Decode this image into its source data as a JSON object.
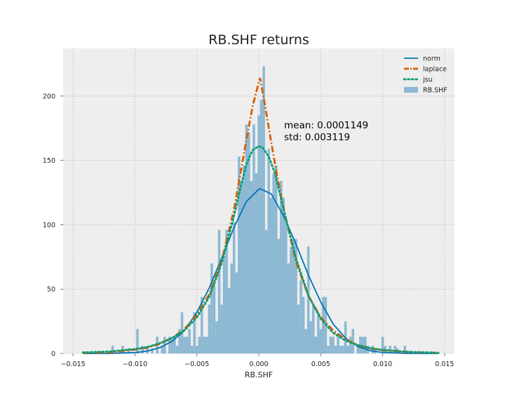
{
  "chart_data": {
    "type": "bar",
    "title": "RB.SHF returns",
    "xlabel": "RB.SHF",
    "ylabel": "",
    "xlim": [
      -0.0158,
      0.0158
    ],
    "ylim": [
      0,
      237
    ],
    "xticks": [
      -0.015,
      -0.01,
      -0.005,
      0.0,
      0.005,
      0.01,
      0.015
    ],
    "xtick_labels": [
      "−0.015",
      "−0.010",
      "−0.005",
      "0.000",
      "0.005",
      "0.010",
      "0.015"
    ],
    "yticks": [
      0,
      50,
      100,
      150,
      200
    ],
    "ytick_labels": [
      "0",
      "50",
      "100",
      "150",
      "200"
    ],
    "grid": true,
    "legend_position": "top-right",
    "annotation_lines": [
      "mean: 0.0001149",
      "std: 0.003119"
    ],
    "histogram": {
      "name": "RB.SHF",
      "color": "#8cb8d3",
      "bins": [
        [
          -0.0118,
          6
        ],
        [
          -0.011,
          6
        ],
        [
          -0.0105,
          4
        ],
        [
          -0.0098,
          19
        ],
        [
          -0.0094,
          6
        ],
        [
          -0.009,
          6
        ],
        [
          -0.0086,
          4
        ],
        [
          -0.0082,
          13
        ],
        [
          -0.0078,
          6
        ],
        [
          -0.0076,
          13
        ],
        [
          -0.0072,
          13
        ],
        [
          -0.007,
          13
        ],
        [
          -0.0068,
          13
        ],
        [
          -0.0066,
          6
        ],
        [
          -0.0064,
          19
        ],
        [
          -0.0062,
          32
        ],
        [
          -0.006,
          13
        ],
        [
          -0.0058,
          13
        ],
        [
          -0.0056,
          19
        ],
        [
          -0.0054,
          6
        ],
        [
          -0.0052,
          32
        ],
        [
          -0.005,
          6
        ],
        [
          -0.0048,
          13
        ],
        [
          -0.0046,
          44
        ],
        [
          -0.0044,
          13
        ],
        [
          -0.0042,
          13
        ],
        [
          -0.004,
          38
        ],
        [
          -0.0038,
          70
        ],
        [
          -0.0036,
          57
        ],
        [
          -0.0034,
          25
        ],
        [
          -0.0032,
          96
        ],
        [
          -0.003,
          38
        ],
        [
          -0.0028,
          76
        ],
        [
          -0.0026,
          96
        ],
        [
          -0.0024,
          51
        ],
        [
          -0.0022,
          70
        ],
        [
          -0.002,
          102
        ],
        [
          -0.0018,
          63
        ],
        [
          -0.0016,
          153
        ],
        [
          -0.0014,
          134
        ],
        [
          -0.0012,
          146
        ],
        [
          -0.001,
          178
        ],
        [
          -0.0008,
          172
        ],
        [
          -0.0006,
          134
        ],
        [
          -0.0004,
          178
        ],
        [
          -0.0002,
          140
        ],
        [
          0.0,
          185
        ],
        [
          0.0002,
          197
        ],
        [
          0.0004,
          223
        ],
        [
          0.0006,
          96
        ],
        [
          0.0008,
          159
        ],
        [
          0.001,
          121
        ],
        [
          0.0012,
          140
        ],
        [
          0.0014,
          146
        ],
        [
          0.0016,
          89
        ],
        [
          0.0018,
          134
        ],
        [
          0.002,
          121
        ],
        [
          0.0022,
          102
        ],
        [
          0.0024,
          70
        ],
        [
          0.0026,
          83
        ],
        [
          0.0028,
          89
        ],
        [
          0.003,
          89
        ],
        [
          0.0032,
          38
        ],
        [
          0.0034,
          57
        ],
        [
          0.0036,
          44
        ],
        [
          0.0038,
          19
        ],
        [
          0.004,
          83
        ],
        [
          0.0042,
          25
        ],
        [
          0.0044,
          38
        ],
        [
          0.0046,
          13
        ],
        [
          0.0048,
          32
        ],
        [
          0.005,
          19
        ],
        [
          0.0052,
          44
        ],
        [
          0.0054,
          44
        ],
        [
          0.0056,
          6
        ],
        [
          0.0058,
          13
        ],
        [
          0.006,
          13
        ],
        [
          0.0062,
          6
        ],
        [
          0.0064,
          13
        ],
        [
          0.0066,
          6
        ],
        [
          0.0068,
          6
        ],
        [
          0.007,
          25
        ],
        [
          0.0072,
          6
        ],
        [
          0.0074,
          13
        ],
        [
          0.0076,
          19
        ],
        [
          0.008,
          6
        ],
        [
          0.0082,
          13
        ],
        [
          0.0084,
          13
        ],
        [
          0.0086,
          13
        ],
        [
          0.0088,
          6
        ],
        [
          0.0092,
          6
        ],
        [
          0.0094,
          4
        ],
        [
          0.01,
          13
        ],
        [
          0.0102,
          6
        ],
        [
          0.0106,
          6
        ],
        [
          0.011,
          6
        ],
        [
          0.0112,
          4
        ],
        [
          0.0118,
          6
        ]
      ]
    },
    "series": [
      {
        "name": "norm",
        "color": "#0072b2",
        "style": "solid",
        "x": [
          -0.0142,
          -0.012,
          -0.01,
          -0.009,
          -0.008,
          -0.007,
          -0.006,
          -0.005,
          -0.004,
          -0.003,
          -0.002,
          -0.001,
          0.0,
          0.0001,
          0.001,
          0.002,
          0.003,
          0.004,
          0.005,
          0.006,
          0.007,
          0.008,
          0.009,
          0.01,
          0.012,
          0.0145
        ],
        "y": [
          0,
          0.1,
          0.7,
          1.9,
          4.5,
          9.5,
          18,
          32,
          51,
          74,
          98,
          118,
          127.6,
          128,
          124,
          107,
          85,
          61,
          40,
          23,
          12,
          5.4,
          2.2,
          0.8,
          0.06,
          0
        ]
      },
      {
        "name": "laplace",
        "color": "#d55e00",
        "style": "dashdot",
        "x": [
          -0.0142,
          -0.012,
          -0.01,
          -0.009,
          -0.008,
          -0.007,
          -0.006,
          -0.005,
          -0.004,
          -0.003,
          -0.002,
          -0.0015,
          -0.001,
          -0.0005,
          0.0,
          0.0001,
          0.0005,
          0.001,
          0.0015,
          0.002,
          0.003,
          0.004,
          0.005,
          0.006,
          0.007,
          0.008,
          0.009,
          0.01,
          0.012,
          0.0145
        ],
        "y": [
          0.5,
          1,
          3,
          4.5,
          7.5,
          12,
          19,
          30,
          46,
          72,
          112,
          139,
          166,
          192,
          211,
          214,
          193,
          164,
          137,
          113,
          71,
          45,
          28,
          18,
          11,
          6.5,
          4,
          2.5,
          1.2,
          0.5
        ]
      },
      {
        "name": "jsu",
        "color": "#009e73",
        "style": "dotted",
        "x": [
          -0.0142,
          -0.012,
          -0.01,
          -0.009,
          -0.008,
          -0.007,
          -0.006,
          -0.005,
          -0.004,
          -0.003,
          -0.002,
          -0.0015,
          -0.001,
          -0.0005,
          0.0,
          0.0003,
          0.0008,
          0.0013,
          0.002,
          0.003,
          0.004,
          0.005,
          0.006,
          0.007,
          0.008,
          0.009,
          0.01,
          0.012,
          0.0145
        ],
        "y": [
          0.8,
          1.6,
          3.5,
          5,
          8,
          12,
          18,
          28,
          44,
          70,
          107,
          128,
          147,
          158,
          161,
          160,
          153,
          140,
          112,
          74,
          45,
          27,
          16,
          10,
          6.5,
          4.2,
          2.8,
          1.3,
          0.6
        ]
      }
    ]
  }
}
